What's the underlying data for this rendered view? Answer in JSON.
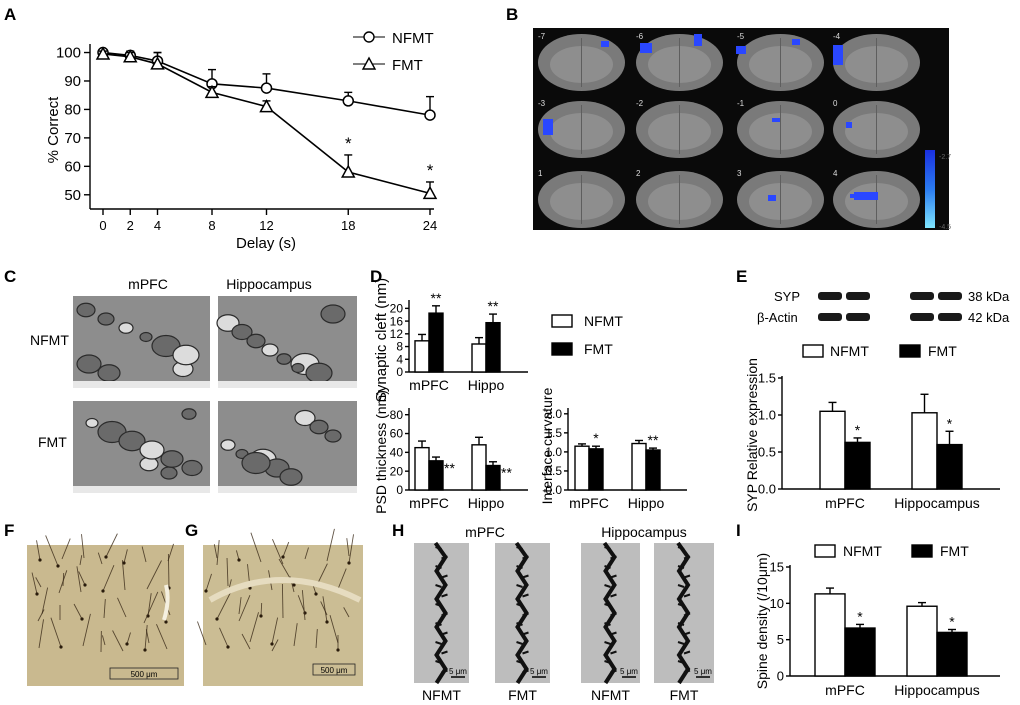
{
  "panels": [
    "A",
    "B",
    "C",
    "D",
    "E",
    "F",
    "G",
    "H",
    "I"
  ],
  "legend": {
    "nfmt": "NFMT",
    "fmt": "FMT"
  },
  "star": "*",
  "dstar": "**",
  "chart_data": [
    {
      "id": "A",
      "type": "line",
      "xlabel": "Delay (s)",
      "ylabel": "% Correct",
      "x": [
        0,
        2,
        4,
        8,
        12,
        18,
        24
      ],
      "xticks": [
        "0",
        "2",
        "4",
        "8",
        "12",
        "18",
        "24"
      ],
      "yticks": [
        "50",
        "60",
        "70",
        "80",
        "90",
        "100"
      ],
      "ylim": [
        45,
        103
      ],
      "series": [
        {
          "name": "NFMT",
          "values": [
            100,
            99,
            97,
            89,
            87.5,
            83,
            78
          ],
          "err": [
            1,
            1.5,
            3,
            5,
            5,
            3,
            6.5
          ]
        },
        {
          "name": "FMT",
          "values": [
            99.5,
            98.5,
            96,
            86,
            81,
            58,
            50.5
          ],
          "err": [
            1,
            1.5,
            4,
            2,
            2,
            6,
            4
          ]
        }
      ],
      "significance": [
        "",
        "",
        "",
        "",
        "",
        "*",
        "*"
      ]
    },
    {
      "id": "D1",
      "type": "bar",
      "ylabel": "Synaptic cleft (nm)",
      "categories": [
        "mPFC",
        "Hippo"
      ],
      "yticks": [
        "0",
        "4",
        "8",
        "12",
        "16",
        "20"
      ],
      "ylim": [
        0,
        22
      ],
      "series": [
        {
          "name": "NFMT",
          "values": [
            9.8,
            8.8
          ],
          "err": [
            2,
            2
          ]
        },
        {
          "name": "FMT",
          "values": [
            18.5,
            15.5
          ],
          "err": [
            2.3,
            2.7
          ]
        }
      ],
      "significance": [
        "**",
        "**"
      ]
    },
    {
      "id": "D2",
      "type": "bar",
      "ylabel": "PSD thickness (nm)",
      "categories": [
        "mPFC",
        "Hippo"
      ],
      "yticks": [
        "0",
        "20",
        "40",
        "60",
        "80"
      ],
      "ylim": [
        0,
        85
      ],
      "series": [
        {
          "name": "NFMT",
          "values": [
            45,
            48
          ],
          "err": [
            7,
            8
          ]
        },
        {
          "name": "FMT",
          "values": [
            31,
            26
          ],
          "err": [
            4,
            4
          ]
        }
      ],
      "significance": [
        "**",
        "**"
      ]
    },
    {
      "id": "D3",
      "type": "bar",
      "ylabel": "Interface curvature",
      "categories": [
        "mPFC",
        "Hippo"
      ],
      "yticks": [
        "0.0",
        "0.5",
        "1.0",
        "1.5",
        "2.0"
      ],
      "ylim": [
        0,
        2.1
      ],
      "series": [
        {
          "name": "NFMT",
          "values": [
            1.15,
            1.22
          ],
          "err": [
            0.06,
            0.08
          ]
        },
        {
          "name": "FMT",
          "values": [
            1.08,
            1.05
          ],
          "err": [
            0.07,
            0.05
          ]
        }
      ],
      "significance": [
        "*",
        "**"
      ]
    },
    {
      "id": "E",
      "type": "bar",
      "ylabel": "SYP Relative expression",
      "categories": [
        "mPFC",
        "Hippocampus"
      ],
      "yticks": [
        "0.0",
        "0.5",
        "1.0",
        "1.5"
      ],
      "ylim": [
        0,
        1.5
      ],
      "series": [
        {
          "name": "NFMT",
          "values": [
            1.05,
            1.03
          ],
          "err": [
            0.12,
            0.25
          ]
        },
        {
          "name": "FMT",
          "values": [
            0.63,
            0.6
          ],
          "err": [
            0.06,
            0.18
          ]
        }
      ],
      "significance": [
        "*",
        "*"
      ]
    },
    {
      "id": "I",
      "type": "bar",
      "ylabel": "Spine density (/10μm)",
      "categories": [
        "mPFC",
        "Hippocampus"
      ],
      "yticks": [
        "0",
        "5",
        "10",
        "15"
      ],
      "ylim": [
        0,
        15
      ],
      "series": [
        {
          "name": "NFMT",
          "values": [
            11.3,
            9.6
          ],
          "err": [
            0.8,
            0.5
          ]
        },
        {
          "name": "FMT",
          "values": [
            6.6,
            6.0
          ],
          "err": [
            0.5,
            0.4
          ]
        }
      ],
      "significance": [
        "*",
        "*"
      ]
    }
  ],
  "panelB": {
    "slices": [
      "-7",
      "-6",
      "-5",
      "-4",
      "-3",
      "-2",
      "-1",
      "0",
      "1",
      "2",
      "3",
      "4"
    ],
    "colorbar": {
      "top": "-2.7",
      "bottom": "-4.5",
      "top_color": "#1a2fe0",
      "bottom_color": "#7fe6ff"
    }
  },
  "panelC": {
    "cols": [
      "mPFC",
      "Hippocampus"
    ],
    "rows": [
      "NFMT",
      "FMT"
    ]
  },
  "panelE": {
    "bands": [
      {
        "name": "SYP",
        "size": "38 kDa"
      },
      {
        "name": "β-Actin",
        "size": "42 kDa"
      }
    ]
  },
  "panelFG": {
    "scale_F": "500 μm",
    "scale_G": "500 μm"
  },
  "panelH": {
    "cols": [
      "mPFC",
      "Hippocampus"
    ],
    "labels": [
      "NFMT",
      "FMT",
      "NFMT",
      "FMT"
    ],
    "scale": "5 μm"
  }
}
